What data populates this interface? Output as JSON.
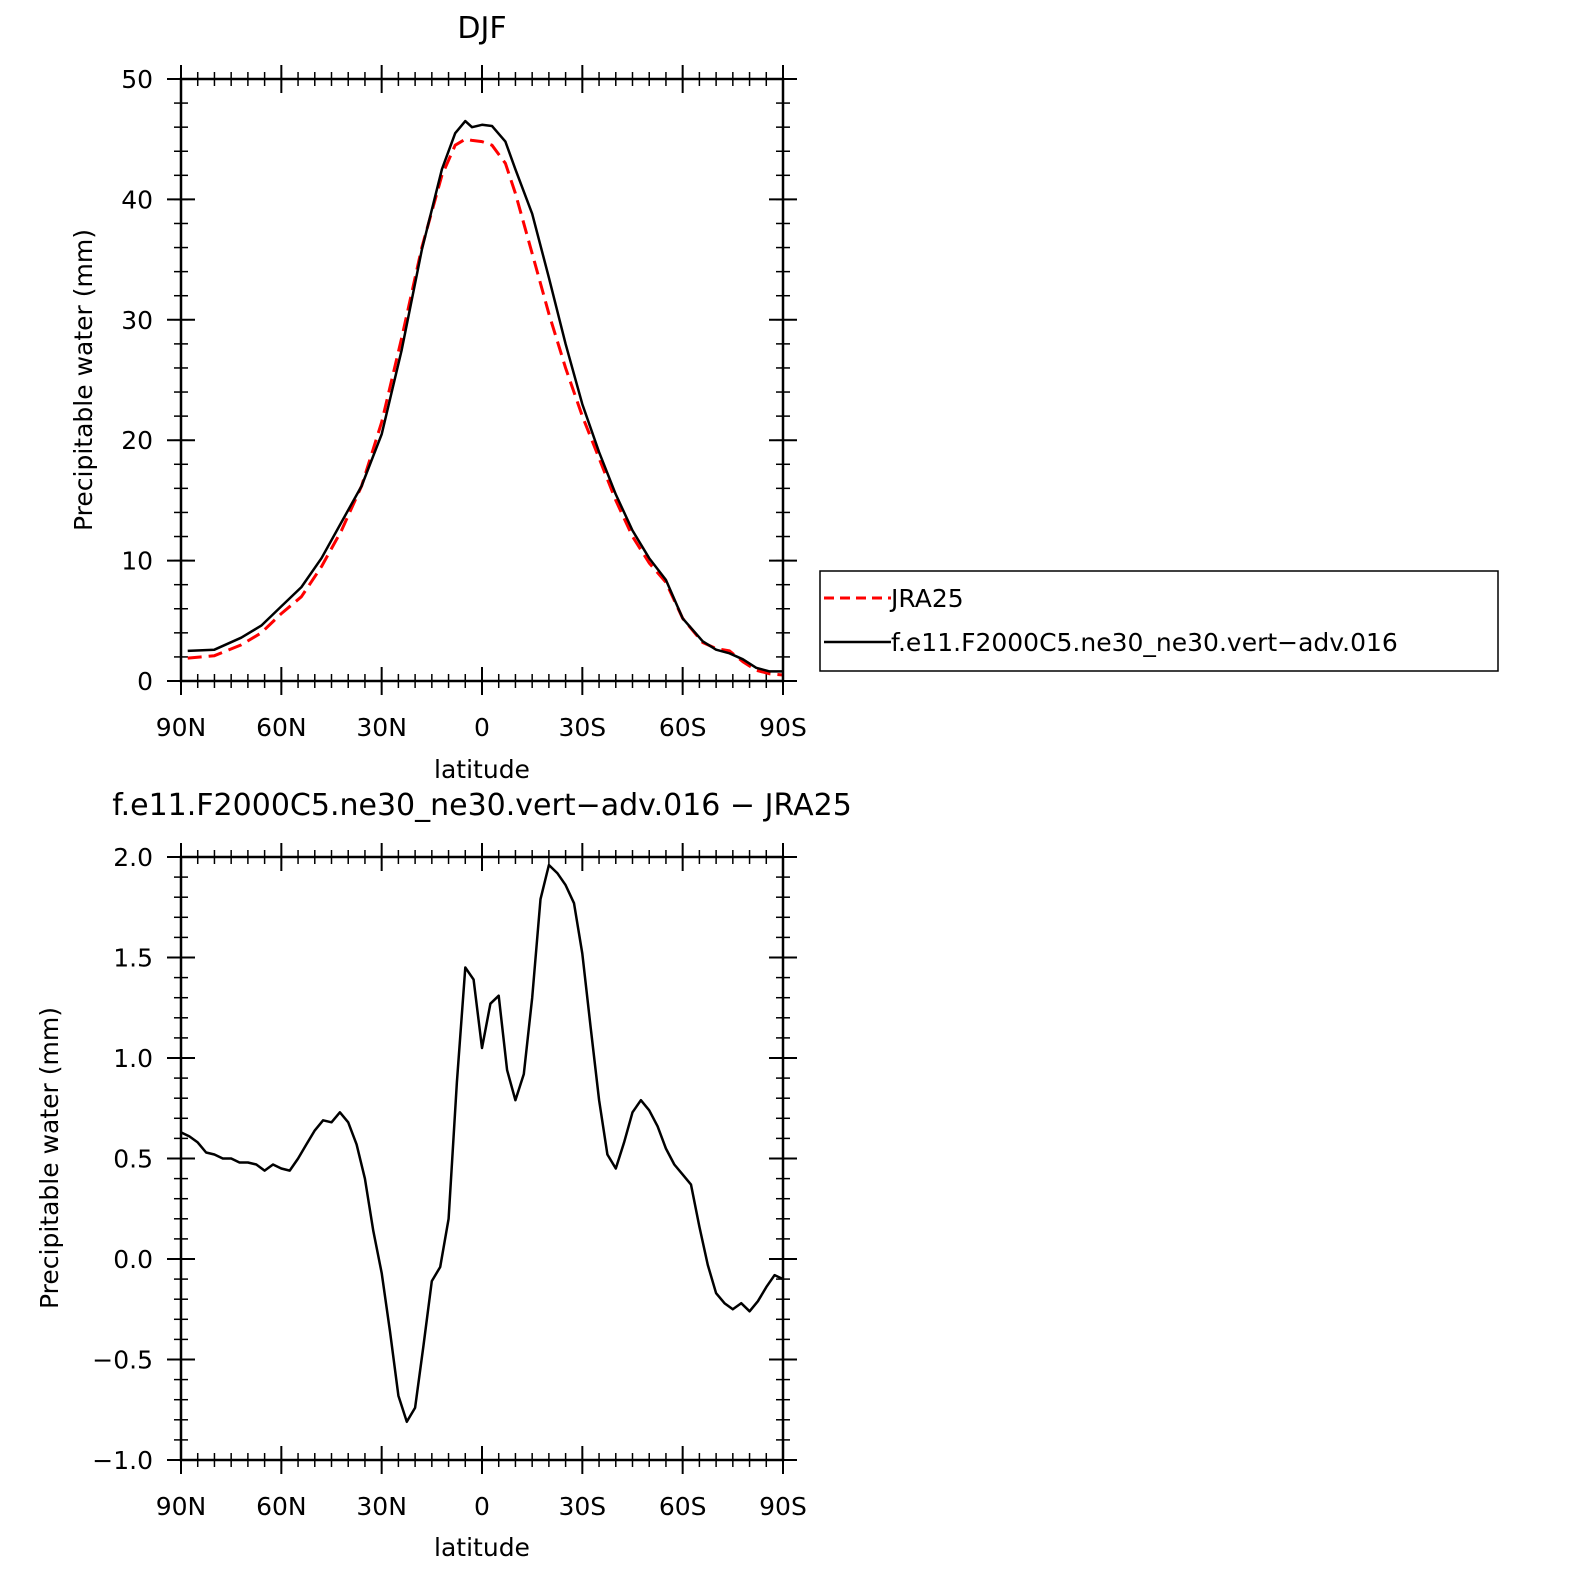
{
  "chart_data": [
    {
      "type": "line",
      "title": "DJF",
      "xlabel": "latitude",
      "ylabel": "Precipitable water (mm)",
      "xlim": [
        90,
        -90
      ],
      "ylim": [
        0,
        50
      ],
      "x_ticks": [
        90,
        60,
        30,
        0,
        -30,
        -60,
        -90
      ],
      "x_tick_labels": [
        "90N",
        "60N",
        "30N",
        "0",
        "30S",
        "60S",
        "90S"
      ],
      "y_ticks": [
        0,
        10,
        20,
        30,
        40,
        50
      ],
      "y_tick_labels": [
        "0",
        "10",
        "20",
        "30",
        "40",
        "50"
      ],
      "legend": {
        "placement": "right",
        "entries": [
          "JRA25",
          "f.e11.F2000C5.ne30_ne30.vert−adv.016"
        ]
      },
      "series": [
        {
          "name": "JRA25",
          "color": "#ff0000",
          "dash": "dashed",
          "x": [
            88,
            80,
            72,
            66,
            60,
            54,
            48,
            42,
            36,
            30,
            24,
            18,
            12,
            8,
            5,
            3,
            0,
            -3,
            -7,
            -10,
            -15,
            -20,
            -25,
            -30,
            -35,
            -40,
            -45,
            -50,
            -55,
            -60,
            -66,
            -70,
            -74,
            -78,
            -82,
            -86,
            -90
          ],
          "values": [
            1.9,
            2.1,
            3.0,
            4.0,
            5.6,
            7.0,
            9.5,
            12.5,
            16.2,
            21.5,
            28.5,
            36.0,
            42.0,
            44.5,
            45.0,
            44.9,
            44.8,
            44.5,
            43.0,
            40.5,
            35.5,
            30.5,
            26.0,
            22.0,
            18.5,
            15.0,
            12.0,
            9.8,
            8.2,
            5.2,
            3.2,
            2.7,
            2.5,
            1.6,
            0.9,
            0.6,
            0.5
          ]
        },
        {
          "name": "f.e11.F2000C5.ne30_ne30.vert−adv.016",
          "color": "#000000",
          "dash": "solid",
          "x": [
            88,
            80,
            72,
            66,
            60,
            54,
            48,
            42,
            36,
            30,
            24,
            18,
            12,
            8,
            5,
            3,
            0,
            -3,
            -7,
            -10,
            -15,
            -20,
            -25,
            -30,
            -35,
            -40,
            -45,
            -50,
            -55,
            -60,
            -66,
            -70,
            -74,
            -78,
            -82,
            -86,
            -90
          ],
          "values": [
            2.5,
            2.6,
            3.6,
            4.6,
            6.2,
            7.8,
            10.2,
            13.2,
            16.2,
            20.5,
            27.5,
            35.8,
            42.5,
            45.5,
            46.5,
            46.0,
            46.2,
            46.1,
            44.8,
            42.5,
            38.8,
            33.5,
            28.0,
            23.0,
            19.0,
            15.5,
            12.5,
            10.2,
            8.4,
            5.2,
            3.3,
            2.6,
            2.3,
            1.8,
            1.1,
            0.8,
            0.8
          ]
        }
      ]
    },
    {
      "type": "line",
      "title": "f.e11.F2000C5.ne30_ne30.vert−adv.016 − JRA25",
      "xlabel": "latitude",
      "ylabel": "Precipitable water (mm)",
      "xlim": [
        90,
        -90
      ],
      "ylim": [
        -1.0,
        2.0
      ],
      "x_ticks": [
        90,
        60,
        30,
        0,
        -30,
        -60,
        -90
      ],
      "x_tick_labels": [
        "90N",
        "60N",
        "30N",
        "0",
        "30S",
        "60S",
        "90S"
      ],
      "y_ticks": [
        -1.0,
        -0.5,
        0.0,
        0.5,
        1.0,
        1.5,
        2.0
      ],
      "y_tick_labels": [
        "−1.0",
        "−0.5",
        "0.0",
        "0.5",
        "1.0",
        "1.5",
        "2.0"
      ],
      "series": [
        {
          "color": "#000000",
          "dash": "solid",
          "x": [
            90,
            87.5,
            85,
            82.5,
            80,
            77.5,
            75,
            72.5,
            70,
            67.5,
            65,
            62.5,
            60,
            57.5,
            55,
            52.5,
            50,
            47.5,
            45,
            42.5,
            40,
            37.5,
            35,
            32.5,
            30,
            27.5,
            25,
            22.5,
            20,
            17.5,
            15,
            12.5,
            10,
            7.5,
            5,
            2.5,
            0,
            -2.5,
            -5,
            -7.5,
            -10,
            -12.5,
            -15,
            -17.5,
            -20,
            -22.5,
            -25,
            -27.5,
            -30,
            -32.5,
            -35,
            -37.5,
            -40,
            -42.5,
            -45,
            -47.5,
            -50,
            -52.5,
            -55,
            -57.5,
            -60,
            -62.5,
            -65,
            -67.5,
            -70,
            -72.5,
            -75,
            -77.5,
            -80,
            -82.5,
            -85,
            -87.5,
            -90
          ],
          "values": [
            0.63,
            0.61,
            0.58,
            0.53,
            0.52,
            0.5,
            0.5,
            0.48,
            0.48,
            0.47,
            0.44,
            0.47,
            0.45,
            0.44,
            0.5,
            0.57,
            0.64,
            0.69,
            0.68,
            0.73,
            0.68,
            0.57,
            0.4,
            0.14,
            -0.07,
            -0.36,
            -0.68,
            -0.81,
            -0.74,
            -0.43,
            -0.11,
            -0.04,
            0.2,
            0.88,
            1.45,
            1.39,
            1.05,
            1.27,
            1.31,
            0.94,
            0.79,
            0.92,
            1.3,
            1.79,
            1.96,
            1.92,
            1.86,
            1.77,
            1.52,
            1.15,
            0.79,
            0.52,
            0.45,
            0.58,
            0.73,
            0.79,
            0.74,
            0.66,
            0.55,
            0.47,
            0.42,
            0.37,
            0.16,
            -0.03,
            -0.17,
            -0.22,
            -0.25,
            -0.22,
            -0.26,
            -0.21,
            -0.14,
            -0.08,
            -0.1
          ]
        }
      ]
    }
  ]
}
